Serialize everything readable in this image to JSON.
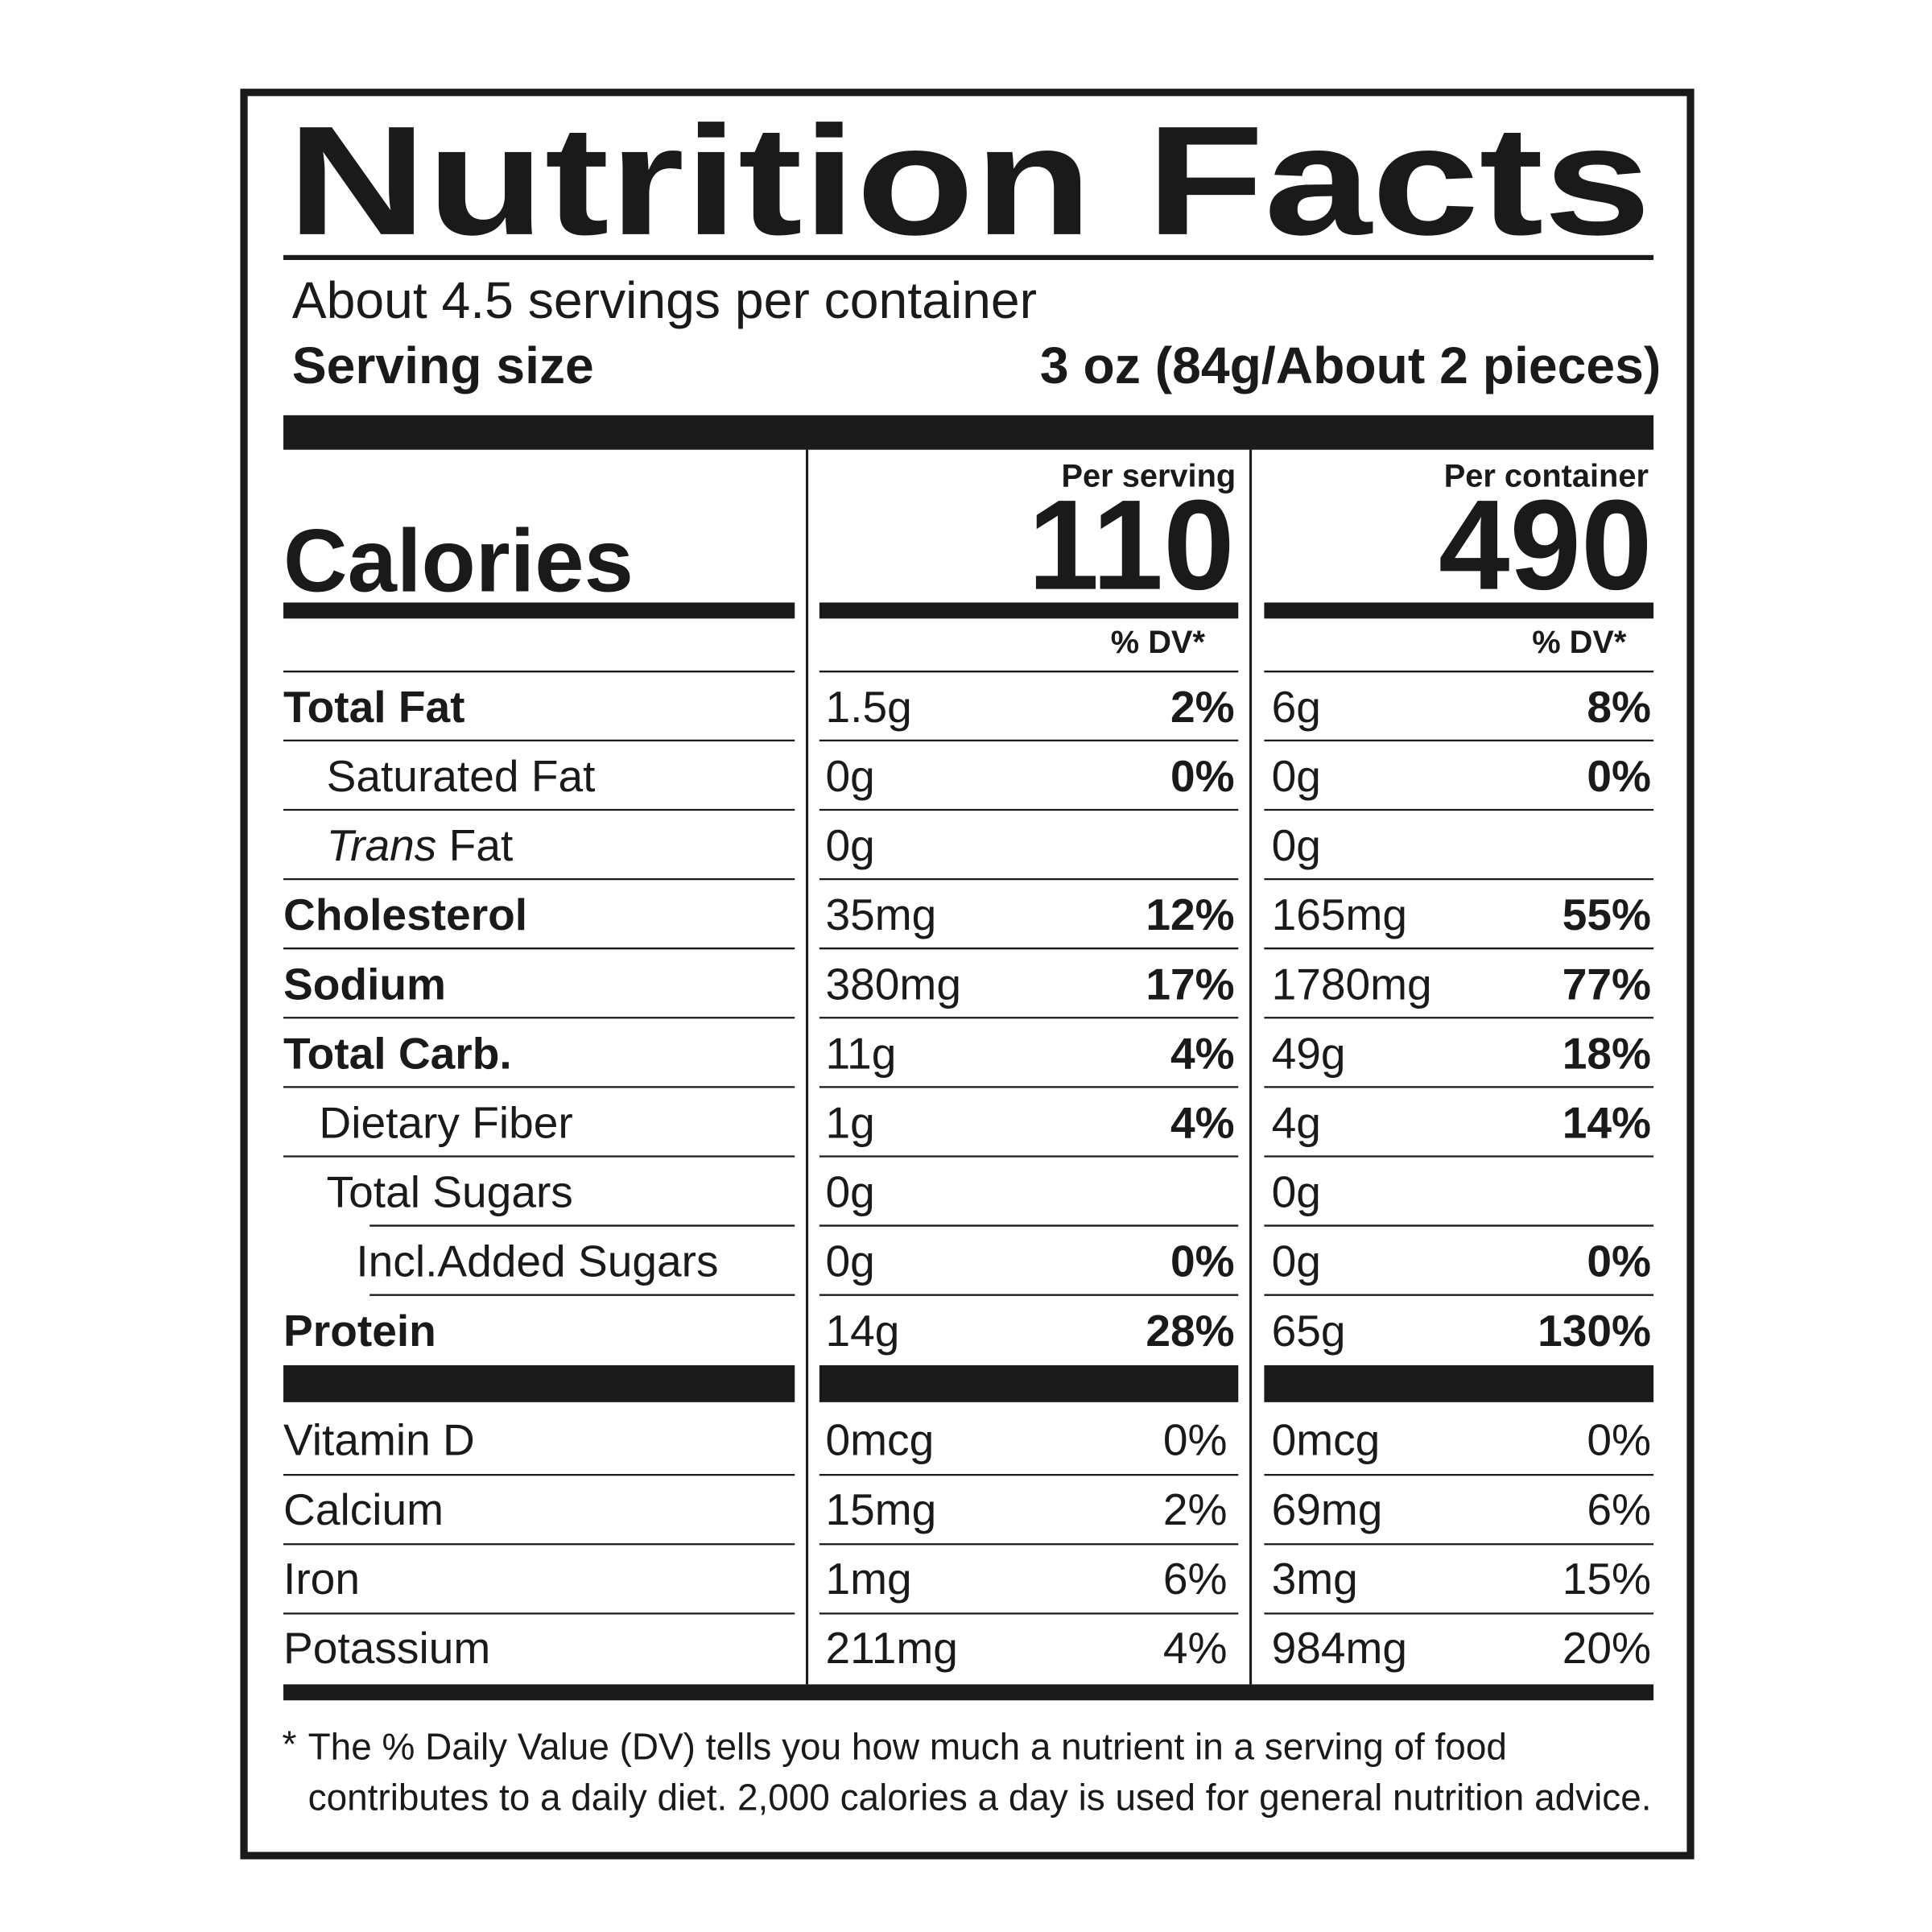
{
  "title": "Nutrition Facts",
  "servings": "About 4.5 servings per container",
  "serving_size": {
    "label": "Serving size",
    "value": "3 oz (84g/About 2 pieces)"
  },
  "calories": {
    "label": "Calories",
    "per_serving_label": "Per serving",
    "per_serving": "110",
    "per_container_label": "Per container",
    "per_container": "490"
  },
  "dv_header": "% DV*",
  "nutrients": [
    {
      "name": "Total Fat",
      "serving_amount": "1.5g",
      "serving_dv": "2%",
      "container_amount": "6g",
      "container_dv": "8%"
    },
    {
      "name": "Saturated Fat",
      "serving_amount": "0g",
      "serving_dv": "0%",
      "container_amount": "0g",
      "container_dv": "0%"
    },
    {
      "name_italic": "Trans",
      "name": "Fat",
      "serving_amount": "0g",
      "serving_dv": null,
      "container_amount": "0g",
      "container_dv": null
    },
    {
      "name": "Cholesterol",
      "serving_amount": "35mg",
      "serving_dv": "12%",
      "container_amount": "165mg",
      "container_dv": "55%"
    },
    {
      "name": "Sodium",
      "serving_amount": "380mg",
      "serving_dv": "17%",
      "container_amount": "1780mg",
      "container_dv": "77%"
    },
    {
      "name": "Total Carb.",
      "serving_amount": "11g",
      "serving_dv": "4%",
      "container_amount": "49g",
      "container_dv": "18%"
    },
    {
      "name": "Dietary Fiber",
      "serving_amount": "1g",
      "serving_dv": "4%",
      "container_amount": "4g",
      "container_dv": "14%"
    },
    {
      "name": "Total Sugars",
      "serving_amount": "0g",
      "serving_dv": null,
      "container_amount": "0g",
      "container_dv": null
    },
    {
      "name": "Incl.Added Sugars",
      "serving_amount": "0g",
      "serving_dv": "0%",
      "container_amount": "0g",
      "container_dv": "0%"
    },
    {
      "name": "Protein",
      "serving_amount": "14g",
      "serving_dv": "28%",
      "container_amount": "65g",
      "container_dv": "130%"
    }
  ],
  "vitamins": [
    {
      "name": "Vitamin D",
      "serving_amount": "0mcg",
      "serving_dv": "0%",
      "container_amount": "0mcg",
      "container_dv": "0%"
    },
    {
      "name": "Calcium",
      "serving_amount": "15mg",
      "serving_dv": "2%",
      "container_amount": "69mg",
      "container_dv": "6%"
    },
    {
      "name": "Iron",
      "serving_amount": "1mg",
      "serving_dv": "6%",
      "container_amount": "3mg",
      "container_dv": "15%"
    },
    {
      "name": "Potassium",
      "serving_amount": "211mg",
      "serving_dv": "4%",
      "container_amount": "984mg",
      "container_dv": "20%"
    }
  ],
  "footnote_marker": "*",
  "footnote": [
    "The % Daily Value (DV) tells you how much a nutrient in a serving of food",
    "contributes to a daily diet. 2,000 calories a day is used for general nutrition advice."
  ]
}
